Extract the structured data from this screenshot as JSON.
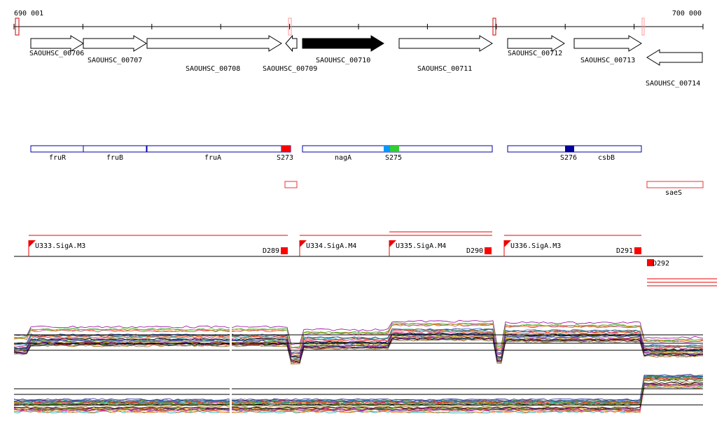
{
  "ruler": {
    "start": "690 001",
    "end": "700 000"
  },
  "genes": [
    "SAOUHSC_00706",
    "SAOUHSC_00707",
    "SAOUHSC_00708",
    "SAOUHSC_00709",
    "SAOUHSC_00710",
    "SAOUHSC_00711",
    "SAOUHSC_00712",
    "SAOUHSC_00713",
    "SAOUHSC_00714"
  ],
  "features": [
    "fruR",
    "fruB",
    "fruA",
    "S273",
    "nagA",
    "S275",
    "S276",
    "csbB",
    "saeS"
  ],
  "promoters": [
    "U333.SigA.M3",
    "U334.SigA.M4",
    "U335.SigA.M4",
    "U336.SigA.M3"
  ],
  "terminators": [
    "D289",
    "D290",
    "D291",
    "D292"
  ]
}
